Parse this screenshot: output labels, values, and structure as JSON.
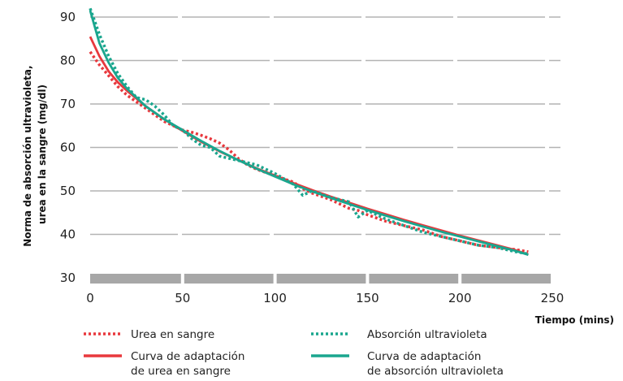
{
  "chart_data": {
    "type": "line",
    "xlabel": "Tiempo (mins)",
    "ylabel_lines": [
      "Norma de absorción ultravioleta,",
      "urea en la sangre (mg/dl)"
    ],
    "xlim": [
      0,
      250
    ],
    "ylim": [
      30,
      90
    ],
    "x_ticks": [
      0,
      50,
      100,
      150,
      200,
      250
    ],
    "y_ticks": [
      30,
      40,
      50,
      60,
      70,
      80,
      90
    ],
    "grid": "horizontal dashed",
    "legend_position": "bottom",
    "series": [
      {
        "name": "Urea en sangre",
        "style": "dotted",
        "color": "#e8383d",
        "x": [
          0,
          5,
          10,
          15,
          20,
          30,
          40,
          50,
          55,
          60,
          65,
          70,
          75,
          80,
          85,
          90,
          100,
          110,
          115,
          120,
          130,
          140,
          145,
          150,
          160,
          170,
          180,
          190,
          200,
          210,
          220,
          230,
          237
        ],
        "y": [
          82,
          79,
          76.5,
          74,
          72,
          69,
          66,
          64,
          63.5,
          62.8,
          62,
          61,
          59.5,
          57.5,
          56,
          55,
          53.5,
          52,
          50.5,
          49.5,
          48,
          46,
          45.5,
          44.5,
          43,
          42,
          41,
          39.5,
          38.5,
          37.5,
          37,
          36.5,
          36
        ]
      },
      {
        "name": "Curva de adaptación de urea en sangre",
        "style": "solid",
        "color": "#e8383d",
        "x": [
          0,
          5,
          10,
          15,
          20,
          30,
          40,
          50,
          60,
          70,
          80,
          90,
          100,
          110,
          120,
          130,
          140,
          150,
          160,
          170,
          180,
          190,
          200,
          210,
          220,
          230,
          237
        ],
        "y": [
          85.5,
          81,
          77.5,
          75,
          73,
          69.5,
          66.5,
          63.8,
          61.3,
          59.1,
          57.1,
          55.2,
          53.5,
          51.8,
          50.2,
          48.7,
          47.3,
          45.9,
          44.6,
          43.3,
          42.1,
          40.9,
          39.7,
          38.6,
          37.5,
          36.4,
          35.3
        ]
      },
      {
        "name": "Absorción ultravioleta",
        "style": "dotted",
        "color": "#1aa68e",
        "x": [
          0,
          5,
          10,
          15,
          20,
          25,
          30,
          35,
          40,
          45,
          50,
          55,
          60,
          65,
          70,
          75,
          80,
          90,
          100,
          110,
          115,
          120,
          130,
          140,
          145,
          150,
          160,
          170,
          180,
          190,
          200,
          210,
          220,
          230,
          237
        ],
        "y": [
          92,
          86,
          81,
          77,
          74,
          71.5,
          71,
          69.5,
          67.5,
          65,
          64,
          62,
          60.5,
          60,
          58,
          57.5,
          57,
          56,
          54,
          51.5,
          49,
          50,
          48.5,
          47.5,
          44,
          45.5,
          43.5,
          42,
          40.5,
          39.5,
          38.5,
          37.5,
          37,
          36,
          35.5
        ]
      },
      {
        "name": "Curva de adaptación de absorción ultravioleta",
        "style": "solid",
        "color": "#1aa68e",
        "x": [
          0,
          5,
          10,
          15,
          20,
          30,
          40,
          50,
          60,
          70,
          80,
          90,
          100,
          110,
          120,
          130,
          140,
          150,
          160,
          170,
          180,
          190,
          200,
          210,
          220,
          230,
          237
        ],
        "y": [
          91.5,
          84,
          79.5,
          76,
          73.5,
          69.5,
          66.5,
          64,
          61.5,
          59.2,
          57.1,
          55.1,
          53.3,
          51.5,
          49.9,
          48.4,
          47,
          45.6,
          44.3,
          43,
          41.8,
          40.6,
          39.5,
          38.4,
          37.3,
          36.2,
          35.3
        ]
      }
    ],
    "legend": [
      [
        "Urea en sangre"
      ],
      [
        "Absorción ultravioleta"
      ],
      [
        "Curva de adaptación",
        "de urea en sangre"
      ],
      [
        "Curva de adaptación",
        "de absorción ultravioleta"
      ]
    ]
  }
}
